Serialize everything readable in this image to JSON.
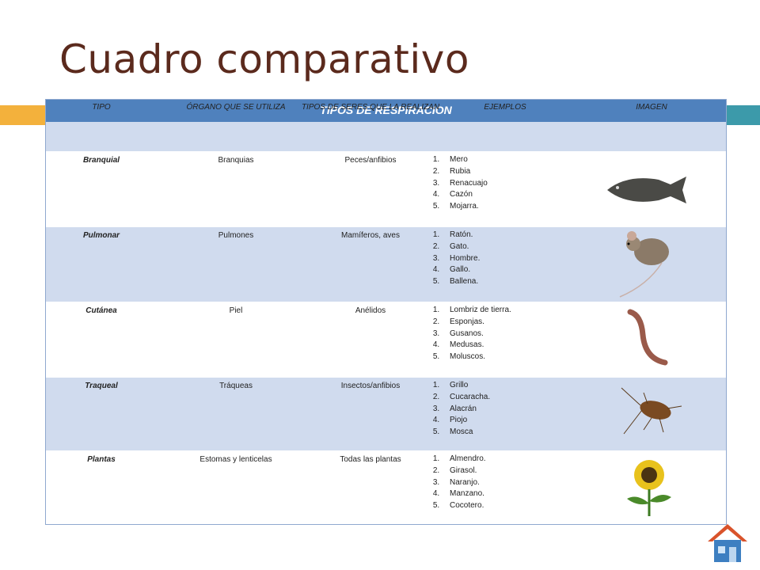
{
  "header": {
    "title": "Cuadro comparativo"
  },
  "table": {
    "caption": "TIPOS DE RESPIRACION",
    "columns": [
      "TIPO",
      "ÓRGANO QUE SE UTILIZA",
      "TIPOS DE SERES QUE LA REALIZAN",
      "EJEMPLOS",
      "IMAGEN"
    ],
    "rows": [
      {
        "type": "Branquial",
        "organ": "Branquias",
        "beings": "Peces/anfibios",
        "examples": [
          "Mero",
          "Rubia",
          "Renacuajo",
          "Cazón",
          "Mojarra."
        ]
      },
      {
        "type": "Pulmonar",
        "organ": "Pulmones",
        "beings": "Mamíferos, aves",
        "examples": [
          "Ratón.",
          "Gato.",
          "Hombre.",
          "Gallo.",
          "Ballena."
        ]
      },
      {
        "type": "Cutánea",
        "organ": "Piel",
        "beings": "Anélidos",
        "examples": [
          "Lombriz de tierra.",
          "Esponjas.",
          "Gusanos.",
          "Medusas.",
          "Moluscos."
        ]
      },
      {
        "type": "Traqueal",
        "organ": "Tráqueas",
        "beings": "Insectos/anfibios",
        "examples": [
          "Grillo",
          "Cucaracha.",
          "Alacrán",
          "Piojo",
          "Mosca"
        ]
      },
      {
        "type": "Plantas",
        "organ": "Estomas y lenticelas",
        "beings": "Todas las plantas",
        "examples": [
          "Almendro.",
          "Girasol.",
          "Naranjo.",
          "Manzano.",
          "Cocotero."
        ]
      }
    ]
  }
}
